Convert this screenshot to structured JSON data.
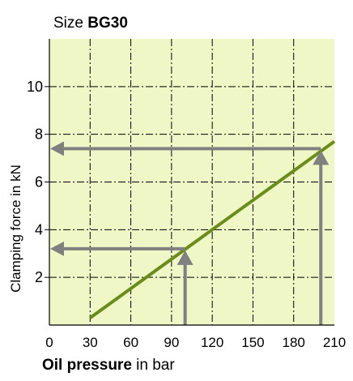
{
  "chart_data": {
    "type": "line",
    "title_prefix": "Size ",
    "title_bold": "BG30",
    "xlabel_bold": "Oil pressure",
    "xlabel_rest": " in bar",
    "ylabel": "Clamping force in kN",
    "xlim": [
      0,
      210
    ],
    "ylim": [
      0,
      12
    ],
    "x_ticks": [
      0,
      30,
      60,
      90,
      120,
      150,
      180,
      210
    ],
    "y_ticks": [
      2,
      4,
      6,
      8,
      10
    ],
    "grid": true,
    "series": [
      {
        "x": [
          30,
          210
        ],
        "y": [
          0.3,
          7.7
        ]
      }
    ],
    "annotations": [
      {
        "type": "reading-arrow",
        "x": 100,
        "y": 3.2
      },
      {
        "type": "reading-arrow",
        "x": 200,
        "y": 7.4
      }
    ],
    "colors": {
      "plot_background": "#f0f7c7",
      "line": "#6a8c1a",
      "grid": "#000000",
      "arrow": "#808080"
    }
  }
}
